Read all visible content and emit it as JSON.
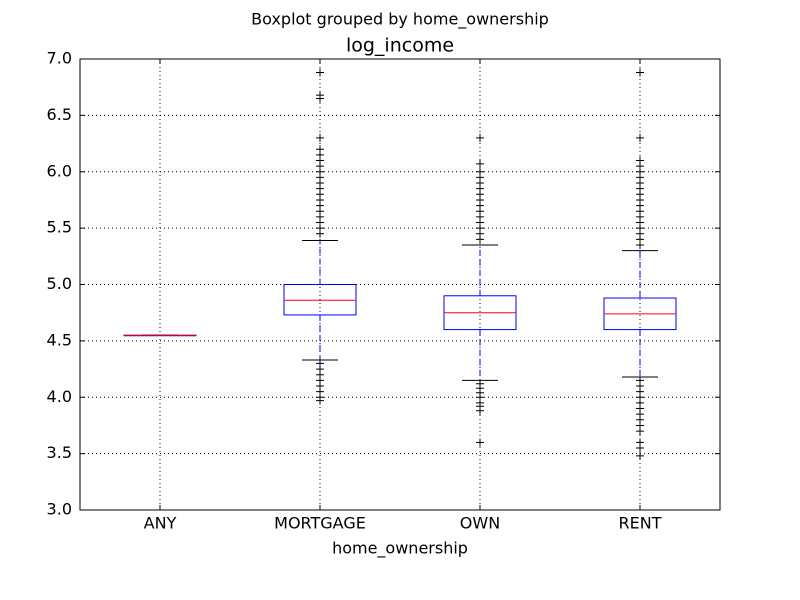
{
  "chart_data": {
    "type": "box",
    "suptitle": "Boxplot grouped by home_ownership",
    "title": "log_income",
    "x_label": "home_ownership",
    "categories": [
      "ANY",
      "MORTGAGE",
      "OWN",
      "RENT"
    ],
    "boxes": [
      {
        "whislo": 4.55,
        "q1": 4.55,
        "med": 4.55,
        "q3": 4.55,
        "whishi": 4.55,
        "fliers": []
      },
      {
        "whislo": 4.33,
        "q1": 4.73,
        "med": 4.86,
        "q3": 5.0,
        "whishi": 5.39,
        "fliers": [
          6.88,
          6.68,
          6.65,
          6.3,
          6.2,
          6.15,
          6.1,
          6.05,
          6.0,
          5.95,
          5.9,
          5.85,
          5.8,
          5.75,
          5.7,
          5.65,
          5.6,
          5.55,
          5.5,
          5.45,
          4.3,
          4.25,
          4.2,
          4.15,
          4.1,
          4.05,
          4.0,
          3.97
        ]
      },
      {
        "whislo": 4.15,
        "q1": 4.6,
        "med": 4.75,
        "q3": 4.9,
        "whishi": 5.35,
        "fliers": [
          6.3,
          6.07,
          6.0,
          5.95,
          5.9,
          5.85,
          5.8,
          5.75,
          5.7,
          5.65,
          5.6,
          5.55,
          5.5,
          5.45,
          5.4,
          4.12,
          4.08,
          4.04,
          4.0,
          3.95,
          3.92,
          3.88,
          3.6
        ]
      },
      {
        "whislo": 4.18,
        "q1": 4.6,
        "med": 4.74,
        "q3": 4.88,
        "whishi": 5.3,
        "fliers": [
          6.88,
          6.3,
          6.1,
          6.05,
          6.0,
          5.95,
          5.9,
          5.85,
          5.8,
          5.75,
          5.7,
          5.65,
          5.6,
          5.55,
          5.5,
          5.45,
          5.4,
          5.35,
          4.15,
          4.1,
          4.05,
          4.0,
          3.95,
          3.9,
          3.85,
          3.8,
          3.75,
          3.7,
          3.6,
          3.55,
          3.48
        ]
      }
    ],
    "box_color": "#0000ff",
    "median_color": "#ff0000",
    "whisker_color": "#0000ff",
    "cap_color": "#000000",
    "flier_color": "#000000",
    "ylim": [
      3.0,
      7.0
    ],
    "yticks": [
      {
        "value": 3.0,
        "label": "3.0"
      },
      3.5,
      {
        "value": 4.0,
        "label": "4.0"
      },
      4.5,
      {
        "value": 5.0,
        "label": "5.0"
      },
      5.5,
      {
        "value": 6.0,
        "label": "6.0"
      },
      6.5,
      {
        "value": 7.0,
        "label": "7.0"
      }
    ],
    "grid": true
  }
}
